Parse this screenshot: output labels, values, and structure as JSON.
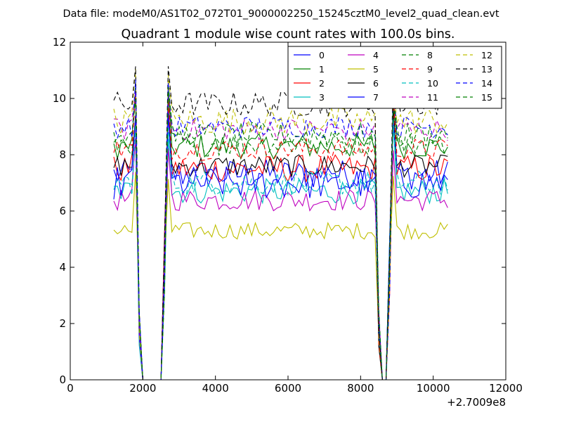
{
  "chart_data": {
    "type": "line",
    "suptitle": "Data file: modeM0/AS1T02_072T01_9000002250_15245cztM0_level2_quad_clean.evt",
    "title": "Quadrant 1 module wise count rates with 100.0s bins.",
    "xlabel": "",
    "ylabel": "",
    "xlim": [
      0,
      12000
    ],
    "ylim": [
      0,
      12
    ],
    "x_offset_label": "+2.7009e8",
    "x_ticks": [
      0,
      2000,
      4000,
      6000,
      8000,
      10000,
      12000
    ],
    "y_ticks": [
      0,
      2,
      4,
      6,
      8,
      10,
      12
    ],
    "grid": false,
    "legend_position": "top-right",
    "x_start": 1200,
    "x_step": 100,
    "gaps": [
      [
        1950,
        2550
      ],
      [
        8550,
        8750
      ]
    ],
    "series": [
      {
        "name": "0",
        "color": "#0000ff",
        "dash": "solid",
        "mean": 7.3,
        "noise": 0.55,
        "peak": 9.6
      },
      {
        "name": "1",
        "color": "#008000",
        "dash": "solid",
        "mean": 8.3,
        "noise": 0.45,
        "peak": 10.1
      },
      {
        "name": "2",
        "color": "#ff0000",
        "dash": "solid",
        "mean": 7.5,
        "noise": 0.5,
        "peak": 9.4
      },
      {
        "name": "3",
        "color": "#00bfbf",
        "dash": "solid",
        "mean": 6.7,
        "noise": 0.45,
        "peak": 8.8
      },
      {
        "name": "4",
        "color": "#bf00bf",
        "dash": "solid",
        "mean": 6.4,
        "noise": 0.4,
        "peak": 8.4
      },
      {
        "name": "5",
        "color": "#bfbf00",
        "dash": "solid",
        "mean": 5.3,
        "noise": 0.3,
        "peak": 7.2
      },
      {
        "name": "6",
        "color": "#000000",
        "dash": "solid",
        "mean": 7.6,
        "noise": 0.4,
        "peak": 9.5
      },
      {
        "name": "7",
        "color": "#0000ff",
        "dash": "solid",
        "mean": 7.0,
        "noise": 0.6,
        "peak": 9.2
      },
      {
        "name": "8",
        "color": "#008000",
        "dash": "dashed",
        "mean": 8.4,
        "noise": 0.45,
        "peak": 10.3
      },
      {
        "name": "9",
        "color": "#ff0000",
        "dash": "dashed",
        "mean": 8.2,
        "noise": 0.4,
        "peak": 10.0
      },
      {
        "name": "10",
        "color": "#00bfbf",
        "dash": "dashed",
        "mean": 7.0,
        "noise": 0.45,
        "peak": 9.0
      },
      {
        "name": "11",
        "color": "#bf00bf",
        "dash": "dashed",
        "mean": 8.9,
        "noise": 0.4,
        "peak": 10.5
      },
      {
        "name": "12",
        "color": "#bfbf00",
        "dash": "dashed",
        "mean": 9.2,
        "noise": 0.5,
        "peak": 10.8
      },
      {
        "name": "13",
        "color": "#000000",
        "dash": "dashed",
        "mean": 9.8,
        "noise": 0.45,
        "peak": 11.2
      },
      {
        "name": "14",
        "color": "#0000ff",
        "dash": "dashed",
        "mean": 9.0,
        "noise": 0.4,
        "peak": 10.6
      },
      {
        "name": "15",
        "color": "#008000",
        "dash": "dashed",
        "mean": 8.7,
        "noise": 0.45,
        "peak": 10.2
      }
    ]
  }
}
